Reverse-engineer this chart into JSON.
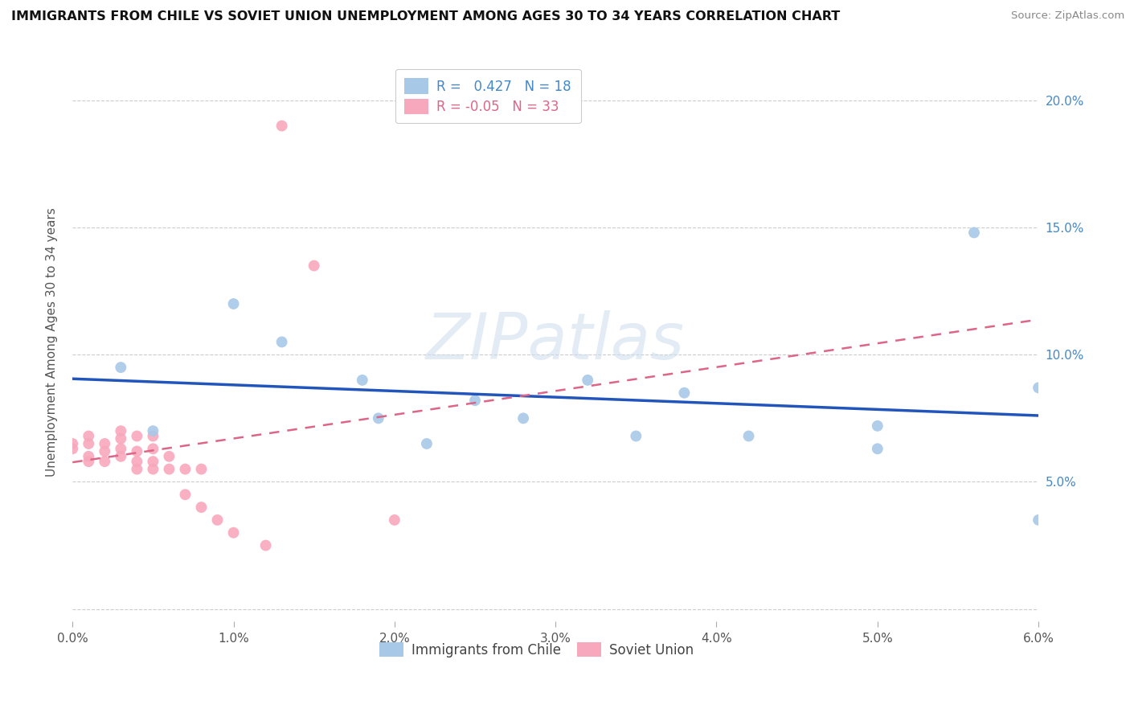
{
  "title": "IMMIGRANTS FROM CHILE VS SOVIET UNION UNEMPLOYMENT AMONG AGES 30 TO 34 YEARS CORRELATION CHART",
  "source": "Source: ZipAtlas.com",
  "ylabel": "Unemployment Among Ages 30 to 34 years",
  "xlim": [
    0.0,
    0.06
  ],
  "ylim": [
    -0.005,
    0.215
  ],
  "yticks": [
    0.0,
    0.05,
    0.1,
    0.15,
    0.2
  ],
  "ytick_labels": [
    "",
    "5.0%",
    "10.0%",
    "15.0%",
    "20.0%"
  ],
  "xticks": [
    0.0,
    0.01,
    0.02,
    0.03,
    0.04,
    0.05,
    0.06
  ],
  "xtick_labels": [
    "0.0%",
    "1.0%",
    "2.0%",
    "3.0%",
    "4.0%",
    "5.0%",
    "6.0%"
  ],
  "chile_R": 0.427,
  "chile_N": 18,
  "soviet_R": -0.05,
  "soviet_N": 33,
  "chile_color": "#a8c8e8",
  "soviet_color": "#f8a8bc",
  "chile_line_color": "#2255bb",
  "soviet_line_color": "#dd6688",
  "background": "#ffffff",
  "grid_color": "#cccccc",
  "watermark": "ZIPatlas",
  "chile_x": [
    0.003,
    0.005,
    0.01,
    0.013,
    0.018,
    0.022,
    0.028,
    0.032,
    0.038,
    0.042,
    0.05,
    0.056,
    0.06,
    0.06,
    0.019,
    0.025,
    0.035,
    0.05
  ],
  "chile_y": [
    0.095,
    0.07,
    0.12,
    0.105,
    0.09,
    0.065,
    0.075,
    0.09,
    0.085,
    0.068,
    0.063,
    0.148,
    0.035,
    0.087,
    0.075,
    0.082,
    0.068,
    0.072
  ],
  "soviet_x": [
    0.0,
    0.0,
    0.001,
    0.001,
    0.001,
    0.001,
    0.002,
    0.002,
    0.002,
    0.003,
    0.003,
    0.003,
    0.003,
    0.004,
    0.004,
    0.004,
    0.004,
    0.005,
    0.005,
    0.005,
    0.005,
    0.006,
    0.006,
    0.007,
    0.007,
    0.008,
    0.008,
    0.009,
    0.01,
    0.012,
    0.013,
    0.015,
    0.02
  ],
  "soviet_y": [
    0.065,
    0.063,
    0.058,
    0.06,
    0.065,
    0.068,
    0.058,
    0.062,
    0.065,
    0.06,
    0.063,
    0.067,
    0.07,
    0.055,
    0.058,
    0.062,
    0.068,
    0.055,
    0.058,
    0.063,
    0.068,
    0.055,
    0.06,
    0.045,
    0.055,
    0.04,
    0.055,
    0.035,
    0.03,
    0.025,
    0.19,
    0.135,
    0.035
  ],
  "legend_text_color_blue": "#4488cc",
  "legend_text_color_pink": "#dd6688",
  "marker_size": 100,
  "title_fontsize": 11.5,
  "axis_tick_fontsize": 11,
  "ylabel_fontsize": 11
}
